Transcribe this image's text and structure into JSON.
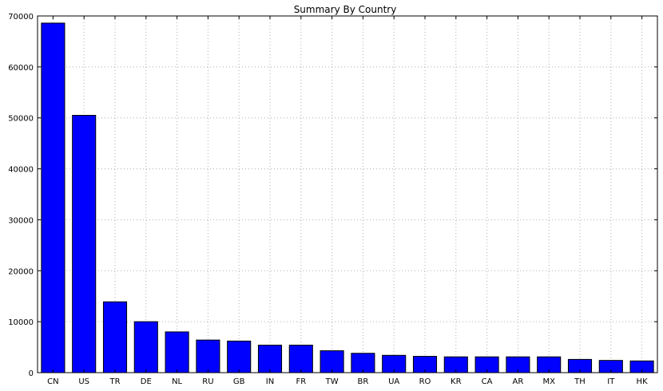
{
  "chart_data": {
    "type": "bar",
    "title": "Summary By Country",
    "xlabel": "",
    "ylabel": "",
    "categories": [
      "CN",
      "US",
      "TR",
      "DE",
      "NL",
      "RU",
      "GB",
      "IN",
      "FR",
      "TW",
      "BR",
      "UA",
      "RO",
      "KR",
      "CA",
      "AR",
      "MX",
      "TH",
      "IT",
      "HK"
    ],
    "values": [
      68600,
      50500,
      13900,
      10000,
      8000,
      6400,
      6200,
      5400,
      5400,
      4300,
      3800,
      3400,
      3200,
      3100,
      3100,
      3100,
      3100,
      2600,
      2400,
      2300
    ],
    "ylim": [
      0,
      70000
    ],
    "yticks": [
      0,
      10000,
      20000,
      30000,
      40000,
      50000,
      60000,
      70000
    ],
    "grid": true,
    "bar_color": "#0000ff",
    "edge_color": "#000000",
    "grid_color": "#b0b0b0"
  }
}
